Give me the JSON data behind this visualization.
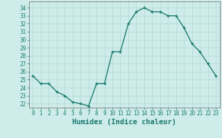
{
  "x": [
    0,
    1,
    2,
    3,
    4,
    5,
    6,
    7,
    8,
    9,
    10,
    11,
    12,
    13,
    14,
    15,
    16,
    17,
    18,
    19,
    20,
    21,
    22,
    23
  ],
  "y": [
    25.5,
    24.5,
    24.5,
    23.5,
    23.0,
    22.2,
    22.0,
    21.7,
    24.5,
    24.5,
    28.5,
    28.5,
    32.0,
    33.5,
    34.0,
    33.5,
    33.5,
    33.0,
    33.0,
    31.5,
    29.5,
    28.5,
    27.0,
    25.5
  ],
  "line_color": "#1a7a6e",
  "marker": "+",
  "bg_color": "#ceecea",
  "grid_color": "#b0d8d4",
  "xlabel": "Humidex (Indice chaleur)",
  "ylim": [
    21.5,
    34.8
  ],
  "yticks": [
    22,
    23,
    24,
    25,
    26,
    27,
    28,
    29,
    30,
    31,
    32,
    33,
    34
  ],
  "xticks": [
    0,
    1,
    2,
    3,
    4,
    5,
    6,
    7,
    8,
    9,
    10,
    11,
    12,
    13,
    14,
    15,
    16,
    17,
    18,
    19,
    20,
    21,
    22,
    23
  ],
  "tick_fontsize": 5.5,
  "xlabel_fontsize": 7.5,
  "line_width": 1.0,
  "marker_size": 3.5,
  "marker_edge_width": 1.0
}
